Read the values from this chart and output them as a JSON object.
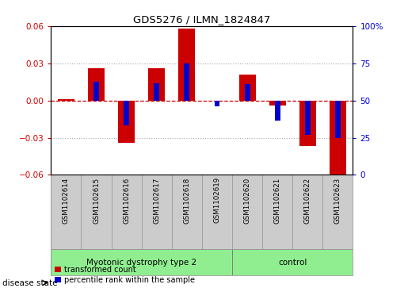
{
  "title": "GDS5276 / ILMN_1824847",
  "samples": [
    "GSM1102614",
    "GSM1102615",
    "GSM1102616",
    "GSM1102617",
    "GSM1102618",
    "GSM1102619",
    "GSM1102620",
    "GSM1102621",
    "GSM1102622",
    "GSM1102623"
  ],
  "red_values": [
    0.001,
    0.026,
    -0.034,
    0.026,
    0.058,
    0.0,
    0.021,
    -0.004,
    -0.037,
    -0.065
  ],
  "blue_values": [
    0.0,
    0.015,
    -0.02,
    0.014,
    0.03,
    -0.005,
    0.013,
    -0.016,
    -0.028,
    -0.03
  ],
  "ylim": [
    -0.06,
    0.06
  ],
  "yticks": [
    -0.06,
    -0.03,
    0.0,
    0.03,
    0.06
  ],
  "y2ticks": [
    0,
    25,
    50,
    75,
    100
  ],
  "disease_groups": [
    {
      "label": "Myotonic dystrophy type 2",
      "start": 0,
      "end": 5
    },
    {
      "label": "control",
      "start": 6,
      "end": 9
    }
  ],
  "red_color": "#CC0000",
  "blue_color": "#0000CC",
  "red_bar_width": 0.55,
  "blue_bar_width": 0.18,
  "tick_label_color_left": "#CC0000",
  "tick_label_color_right": "#0000CC",
  "legend_red": "transformed count",
  "legend_blue": "percentile rank within the sample",
  "disease_label": "disease state",
  "dotted_color": "#aaaaaa",
  "bg_sample": "#cccccc",
  "bg_disease": "#90EE90",
  "sample_edge_color": "#999999"
}
